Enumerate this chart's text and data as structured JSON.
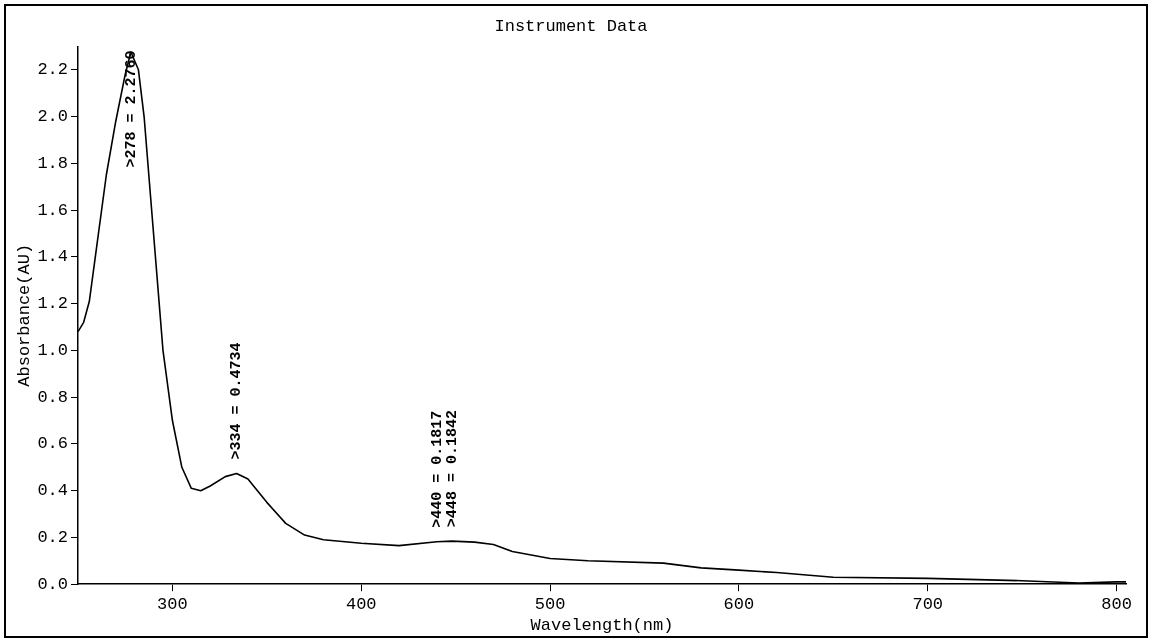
{
  "chart_data": {
    "type": "line",
    "title": "Instrument Data",
    "xlabel": "Wavelength(nm)",
    "ylabel": "Absorbance(AU)",
    "xlim": [
      250,
      805
    ],
    "xticks": [
      300,
      400,
      500,
      600,
      700,
      800
    ],
    "ylim": [
      0,
      2.3
    ],
    "yticks": [
      {
        "value": 0,
        "label": "0.0"
      },
      {
        "value": 0.2,
        "label": "0.2"
      },
      {
        "value": 0.4,
        "label": "0.4"
      },
      {
        "value": 0.6,
        "label": "0.6"
      },
      {
        "value": 0.8,
        "label": "0.8"
      },
      {
        "value": 1.0,
        "label": "1.0"
      },
      {
        "value": 1.2,
        "label": "1.2"
      },
      {
        "value": 1.4,
        "label": "1.4"
      },
      {
        "value": 1.6,
        "label": "1.6"
      },
      {
        "value": 1.8,
        "label": "1.8"
      },
      {
        "value": 2.0,
        "label": "2.0"
      },
      {
        "value": 2.2,
        "label": "2.2"
      }
    ],
    "grid": false,
    "legend": false,
    "marker": "none",
    "line_style": "solid",
    "series": [
      {
        "color": "#000000",
        "x": [
          250,
          253,
          256,
          260,
          265,
          270,
          275,
          278,
          282,
          285,
          290,
          295,
          300,
          305,
          310,
          315,
          320,
          328,
          334,
          340,
          350,
          360,
          370,
          380,
          400,
          420,
          440,
          448,
          460,
          470,
          480,
          500,
          520,
          560,
          580,
          600,
          620,
          650,
          700,
          750,
          780,
          800,
          805
        ],
        "values": [
          1.08,
          1.12,
          1.21,
          1.45,
          1.75,
          1.98,
          2.18,
          2.276,
          2.2,
          2.0,
          1.5,
          1.0,
          0.7,
          0.5,
          0.41,
          0.4,
          0.42,
          0.46,
          0.4734,
          0.45,
          0.35,
          0.26,
          0.21,
          0.19,
          0.175,
          0.165,
          0.1817,
          0.1842,
          0.18,
          0.17,
          0.14,
          0.11,
          0.1,
          0.09,
          0.07,
          0.06,
          0.05,
          0.03,
          0.025,
          0.015,
          0.005,
          0.01,
          0.01
        ]
      }
    ],
    "annotations": [
      {
        "text": ">278 = 2.2760",
        "x": 278,
        "y": 2.276
      },
      {
        "text": ">334 = 0.4734",
        "x": 334,
        "y": 0.4734
      },
      {
        "text": ">440 = 0.1817",
        "x": 440,
        "y": 0.1817
      },
      {
        "text": ">448 = 0.1842",
        "x": 448,
        "y": 0.1842
      }
    ]
  }
}
